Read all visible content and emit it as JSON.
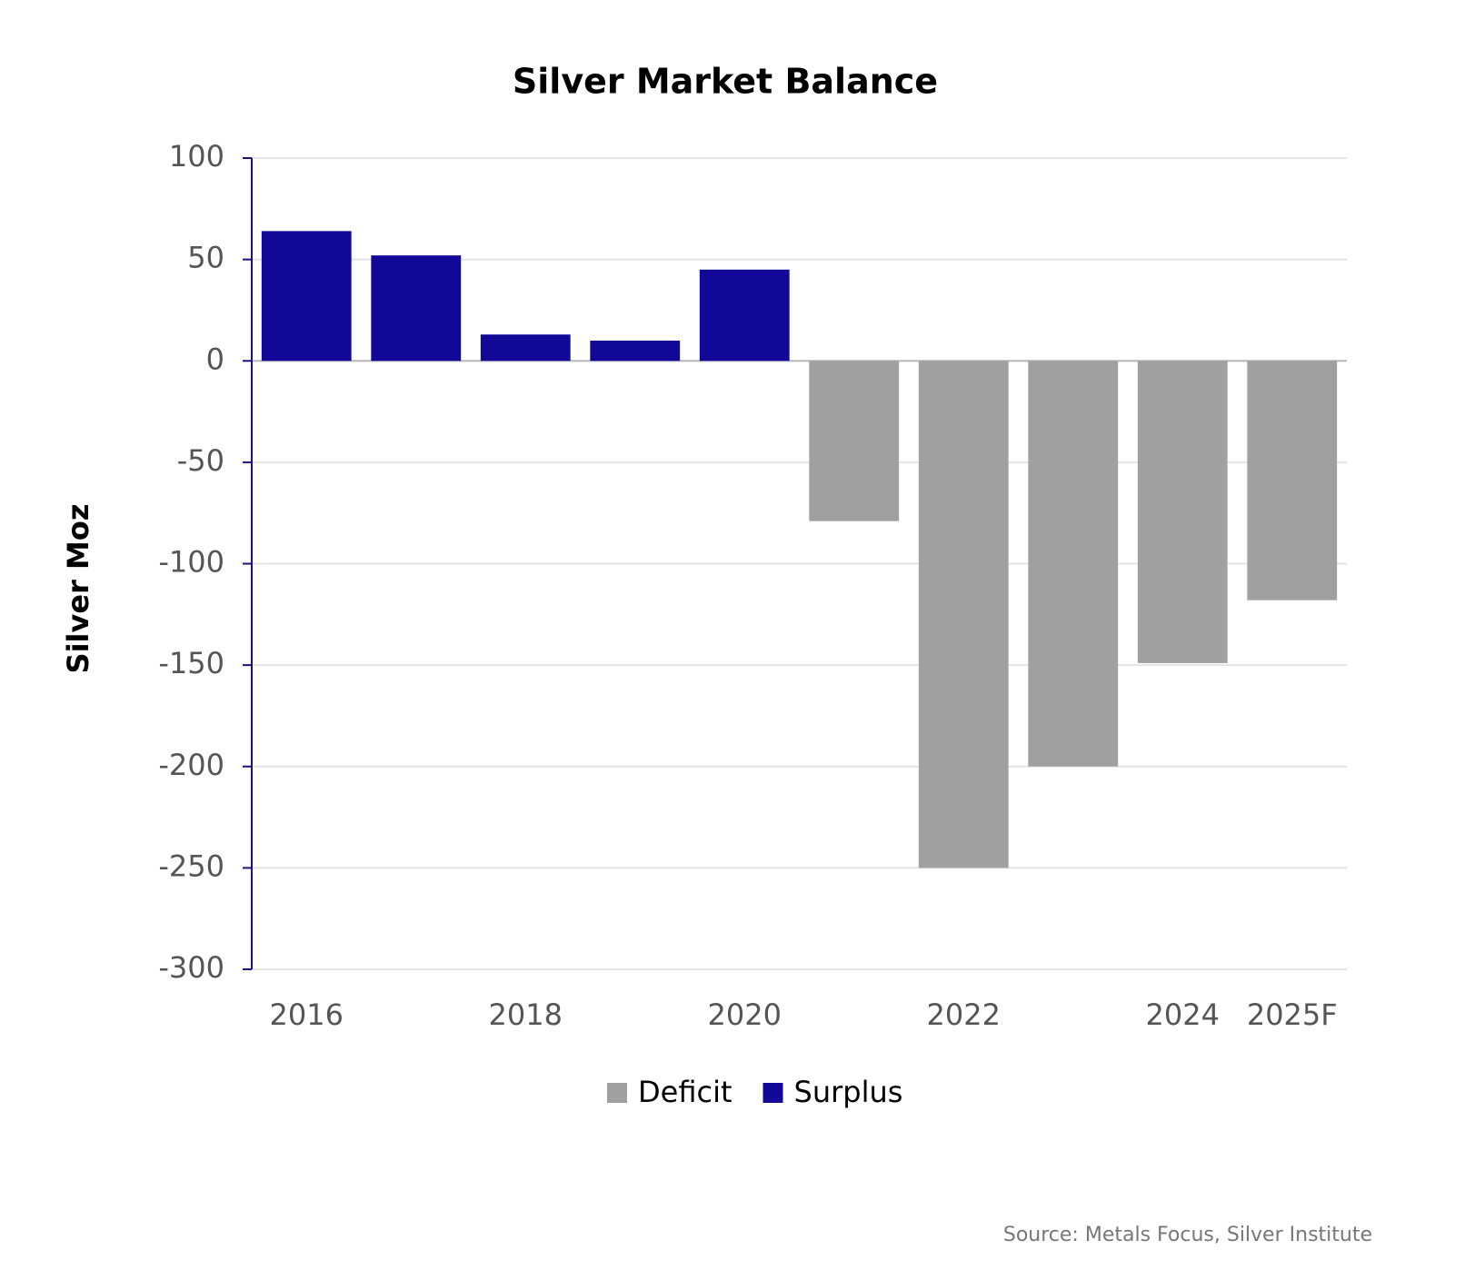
{
  "chart_data": {
    "type": "bar",
    "title": "Silver Market Balance",
    "y_label": "Silver  Moz",
    "source": "Source: Metals Focus, Silver Institute",
    "categories": [
      "2016",
      null,
      "2018",
      null,
      "2020",
      null,
      "2022",
      null,
      "2024",
      "2025F"
    ],
    "series": [
      {
        "name": "Deficit",
        "color": "#a0a0a0",
        "values": [
          null,
          null,
          null,
          null,
          null,
          -79,
          -250,
          -200,
          -149,
          -118
        ]
      },
      {
        "name": "Surplus",
        "color": "#120898",
        "values": [
          64,
          52,
          13,
          10,
          45,
          null,
          null,
          null,
          null,
          null
        ]
      }
    ],
    "ylim": [
      -300,
      100
    ],
    "yticks": [
      -300,
      -250,
      -200,
      -150,
      -100,
      -50,
      0,
      50,
      100
    ],
    "grid": true
  }
}
